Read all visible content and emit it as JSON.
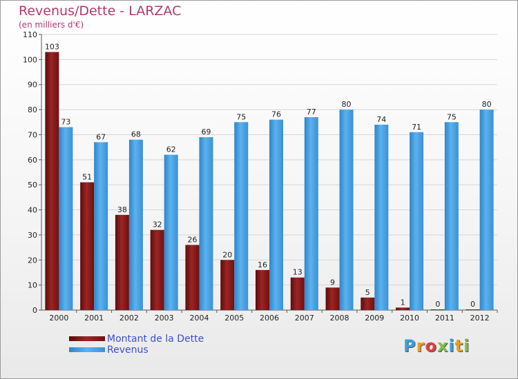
{
  "chart_data": {
    "type": "bar",
    "title": "Revenus/Dette - LARZAC",
    "subtitle": "(en milliers d'€)",
    "categories": [
      "2000",
      "2001",
      "2002",
      "2003",
      "2004",
      "2005",
      "2006",
      "2007",
      "2008",
      "2009",
      "2010",
      "2011",
      "2012"
    ],
    "series": [
      {
        "name": "Montant de la Dette",
        "color": "#8b1a1a",
        "values": [
          103,
          51,
          38,
          32,
          26,
          20,
          16,
          13,
          9,
          5,
          1,
          0,
          0
        ]
      },
      {
        "name": "Revenus",
        "color": "#4ba3e3",
        "values": [
          73,
          67,
          68,
          62,
          69,
          75,
          76,
          77,
          80,
          74,
          71,
          75,
          80
        ]
      }
    ],
    "ylim": [
      0,
      110
    ],
    "yticks": [
      0,
      10,
      20,
      30,
      40,
      50,
      60,
      70,
      80,
      90,
      100,
      110
    ],
    "grid": true,
    "legend": "bottom-left"
  },
  "logo": {
    "text": "Proxiti",
    "colors": [
      "#3aa0e0",
      "#e8a020",
      "#e04040",
      "#7cc04a",
      "#3aa0e0",
      "#e8a020",
      "#7cc04a"
    ]
  }
}
